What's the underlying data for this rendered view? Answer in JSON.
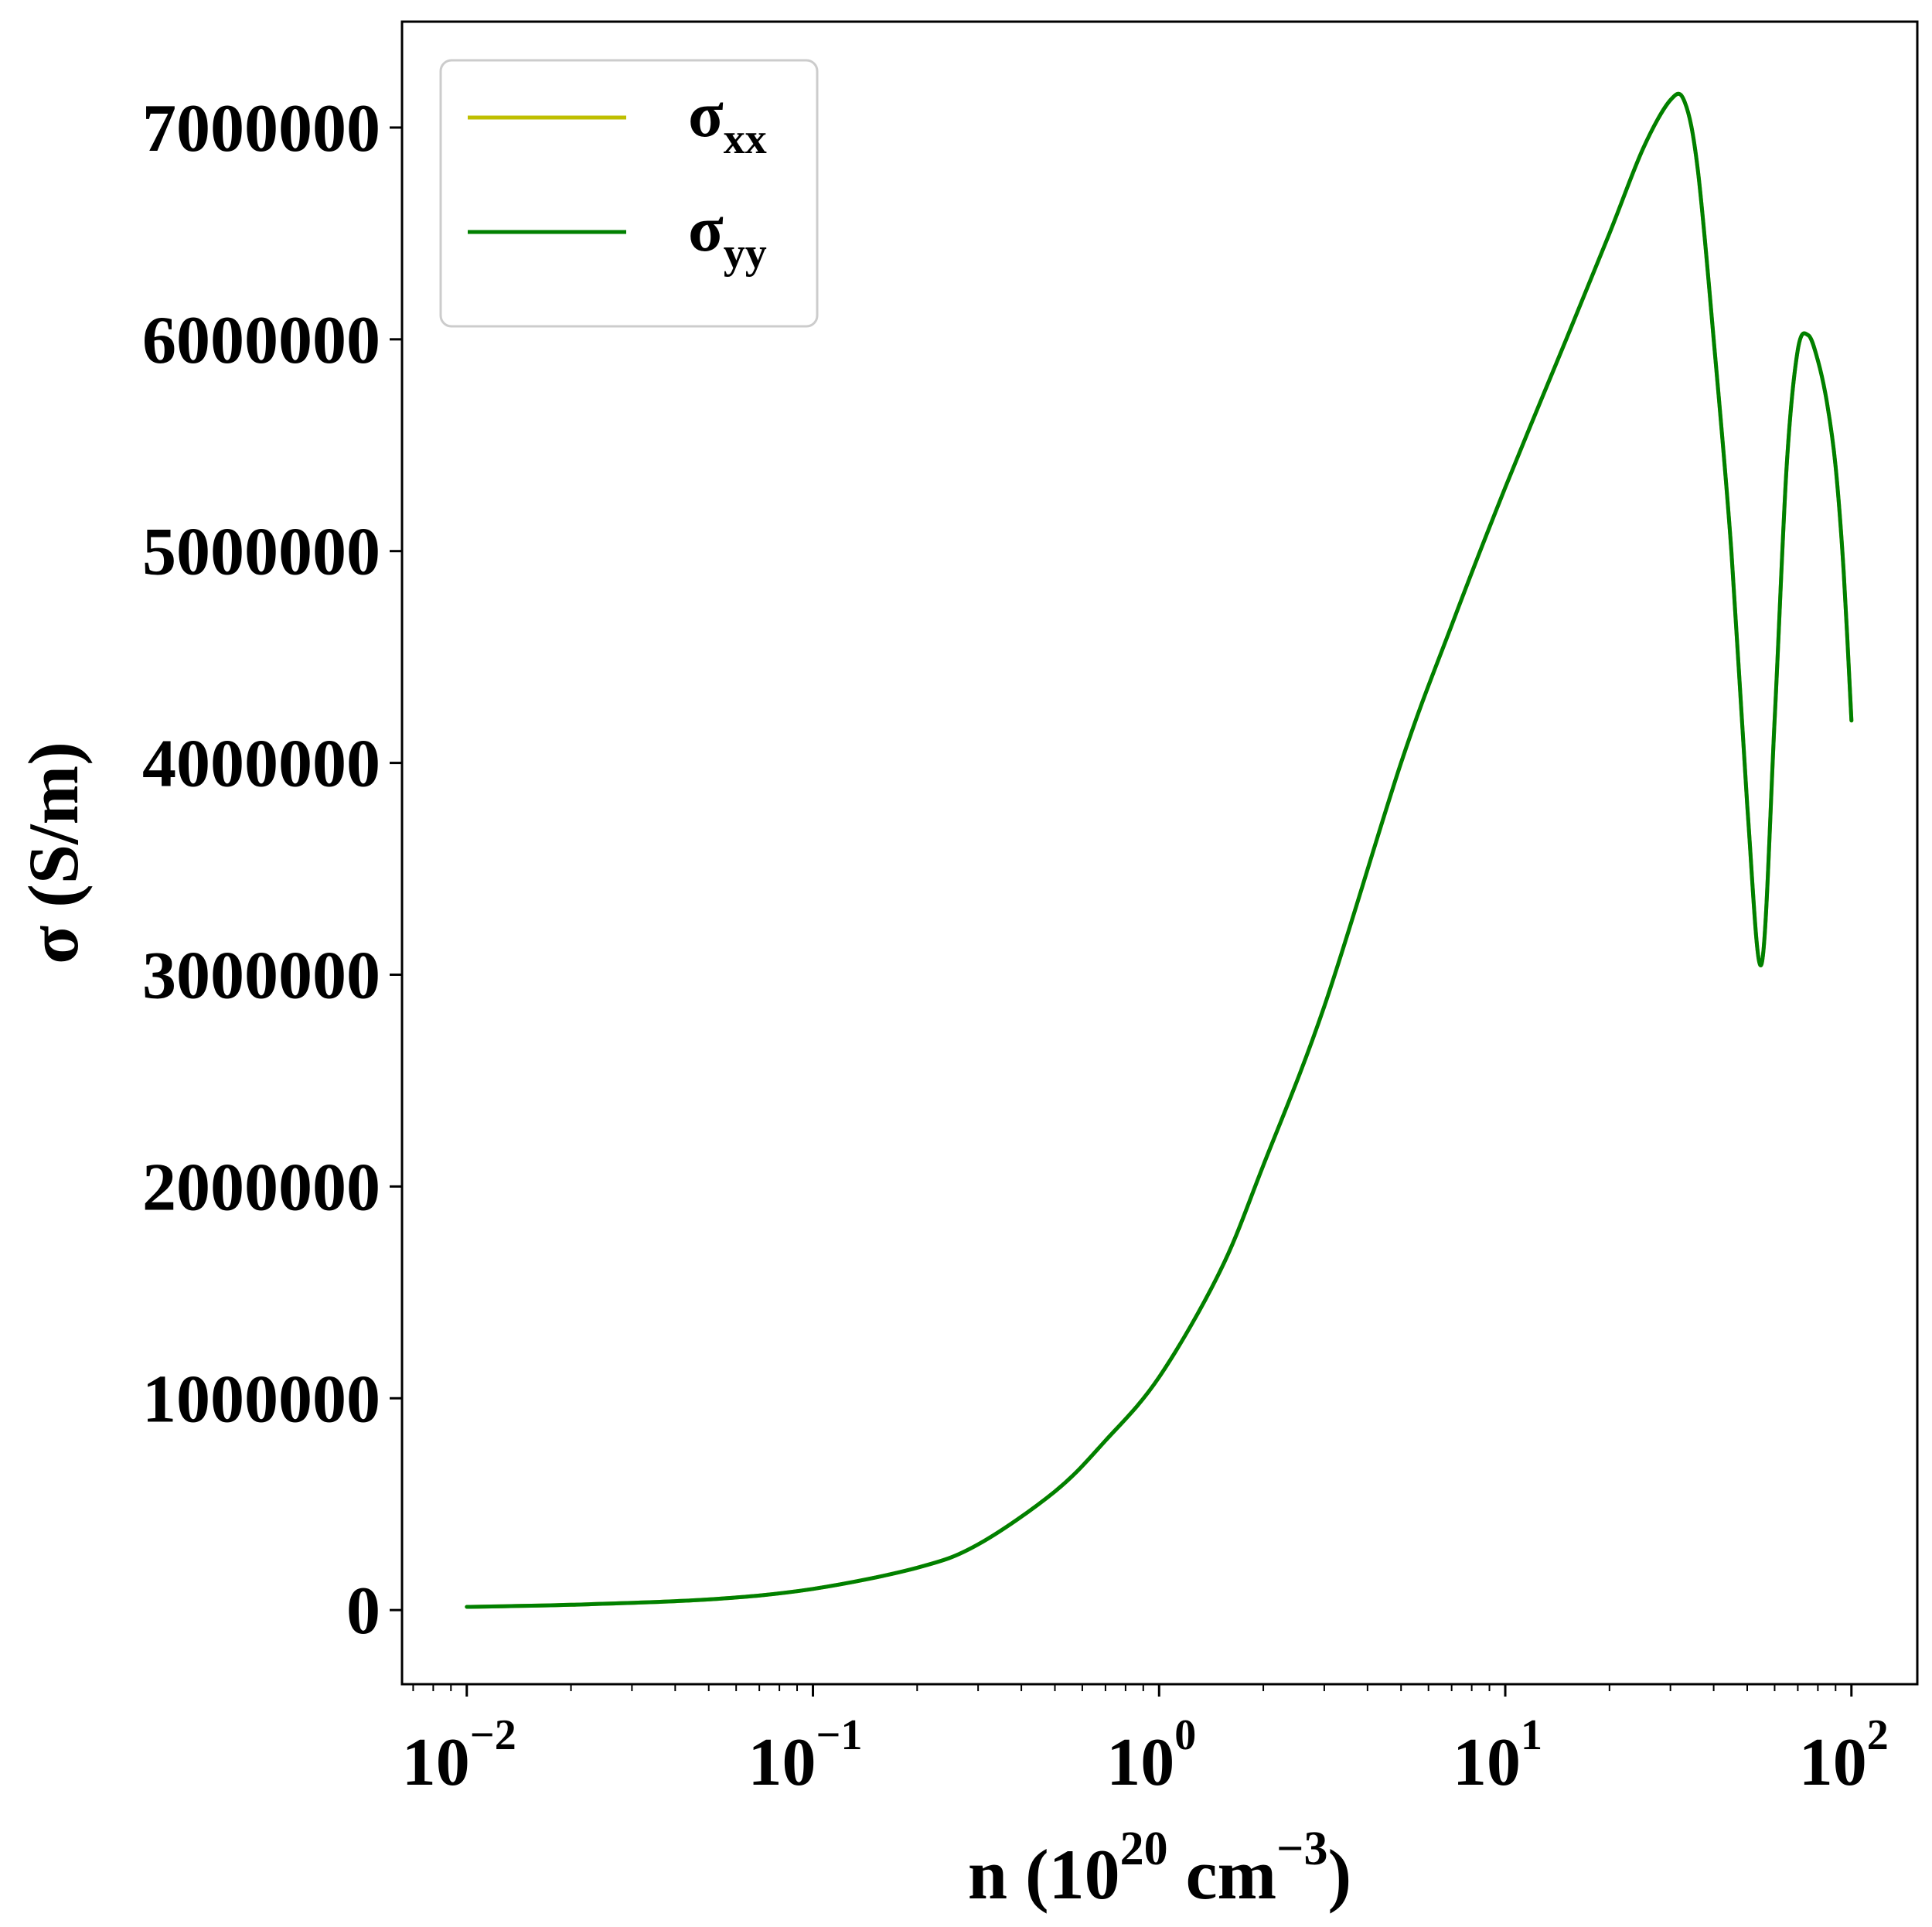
{
  "chart_data": {
    "type": "line",
    "xscale": "log",
    "xlim": [
      0.0065,
      155
    ],
    "ylim": [
      -350000,
      7500000
    ],
    "xlabel": {
      "base": "n (10",
      "exp1": "20",
      "mid": " cm",
      "exp2": "−3",
      "end": ")"
    },
    "ylabel": "σ (S/m)",
    "yticks": [
      {
        "value": 0,
        "label": "0"
      },
      {
        "value": 1000000,
        "label": "1000000"
      },
      {
        "value": 2000000,
        "label": "2000000"
      },
      {
        "value": 3000000,
        "label": "3000000"
      },
      {
        "value": 4000000,
        "label": "4000000"
      },
      {
        "value": 5000000,
        "label": "5000000"
      },
      {
        "value": 6000000,
        "label": "6000000"
      },
      {
        "value": 7000000,
        "label": "7000000"
      }
    ],
    "xticks": [
      {
        "value": 0.01,
        "base": "10",
        "exp": "−2"
      },
      {
        "value": 0.1,
        "base": "10",
        "exp": "−1"
      },
      {
        "value": 1,
        "base": "10",
        "exp": "0"
      },
      {
        "value": 10,
        "base": "10",
        "exp": "1"
      },
      {
        "value": 100,
        "base": "10",
        "exp": "2"
      }
    ],
    "grid": false,
    "legend": {
      "position": "top-left",
      "entries": [
        {
          "symbol": "σ",
          "sub": "xx",
          "color": "#bfbf00"
        },
        {
          "symbol": "σ",
          "sub": "yy",
          "color": "#008000"
        }
      ]
    },
    "series": [
      {
        "name": "σxx",
        "color": "#bfbf00",
        "x": [
          0.01,
          0.02,
          0.05,
          0.1,
          0.2,
          0.3,
          0.5,
          0.7,
          1.0,
          1.5,
          2.0,
          3.0,
          5.0,
          7.0,
          10,
          15,
          20,
          25,
          30,
          33,
          36,
          40,
          45,
          50,
          55,
          60,
          65,
          70,
          75,
          80,
          85,
          90,
          95,
          100
        ],
        "y": [
          15000,
          25000,
          50000,
          100000,
          200000,
          310000,
          560000,
          800000,
          1100000,
          1600000,
          2100000,
          2850000,
          4000000,
          4650000,
          5300000,
          6000000,
          6500000,
          6900000,
          7130000,
          7120000,
          6800000,
          6000000,
          5000000,
          3800000,
          3050000,
          4200000,
          5400000,
          5950000,
          6020000,
          5900000,
          5700000,
          5400000,
          4900000,
          4200000
        ]
      },
      {
        "name": "σyy",
        "color": "#008000",
        "x": [
          0.01,
          0.02,
          0.05,
          0.1,
          0.2,
          0.3,
          0.5,
          0.7,
          1.0,
          1.5,
          2.0,
          3.0,
          5.0,
          7.0,
          10,
          15,
          20,
          25,
          30,
          33,
          36,
          40,
          45,
          50,
          55,
          60,
          65,
          70,
          75,
          80,
          85,
          90,
          95,
          100
        ],
        "y": [
          15000,
          25000,
          50000,
          100000,
          200000,
          310000,
          560000,
          800000,
          1100000,
          1600000,
          2100000,
          2850000,
          4000000,
          4650000,
          5300000,
          6000000,
          6500000,
          6900000,
          7130000,
          7120000,
          6800000,
          6000000,
          5000000,
          3800000,
          3050000,
          4200000,
          5400000,
          5950000,
          6020000,
          5900000,
          5700000,
          5400000,
          4900000,
          4200000
        ]
      }
    ]
  }
}
